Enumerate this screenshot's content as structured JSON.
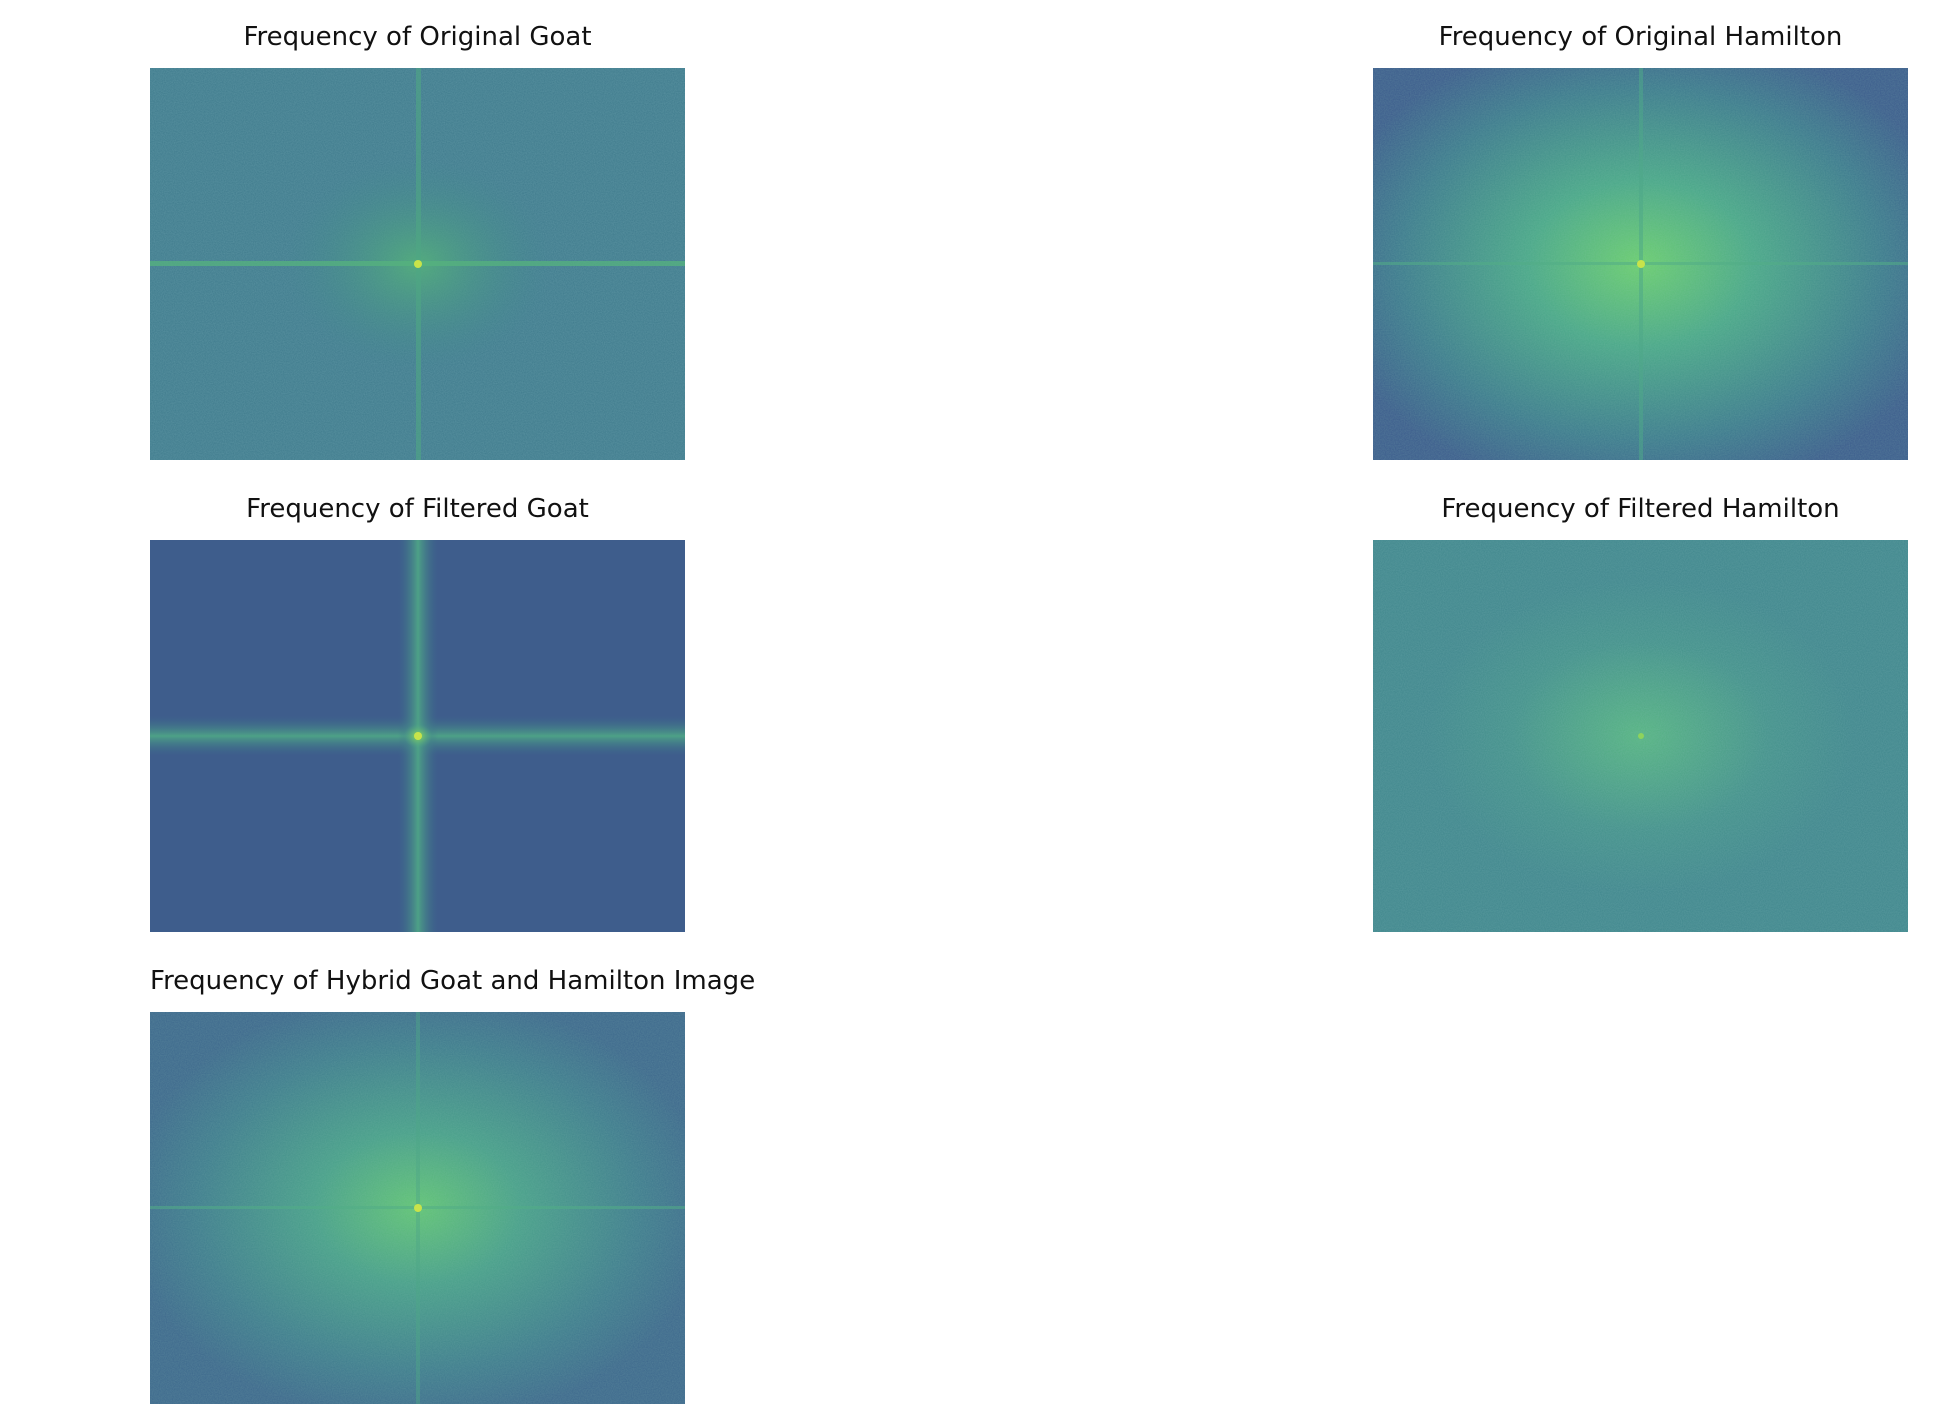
{
  "panels": [
    {
      "title": "Frequency of Original Goat"
    },
    {
      "title": "Frequency of Original Hamilton"
    },
    {
      "title": "Frequency of Filtered Goat"
    },
    {
      "title": "Frequency of Filtered Hamilton"
    },
    {
      "title": "Frequency of Hybrid Goat and Hamilton Image"
    }
  ],
  "colors": {
    "background": "#ffffff",
    "spectrum_low": "#3b5b8c",
    "spectrum_mid": "#3f8a8c",
    "spectrum_high": "#6ccf6e",
    "spectrum_peak": "#c8e34a"
  },
  "colormap": "viridis"
}
